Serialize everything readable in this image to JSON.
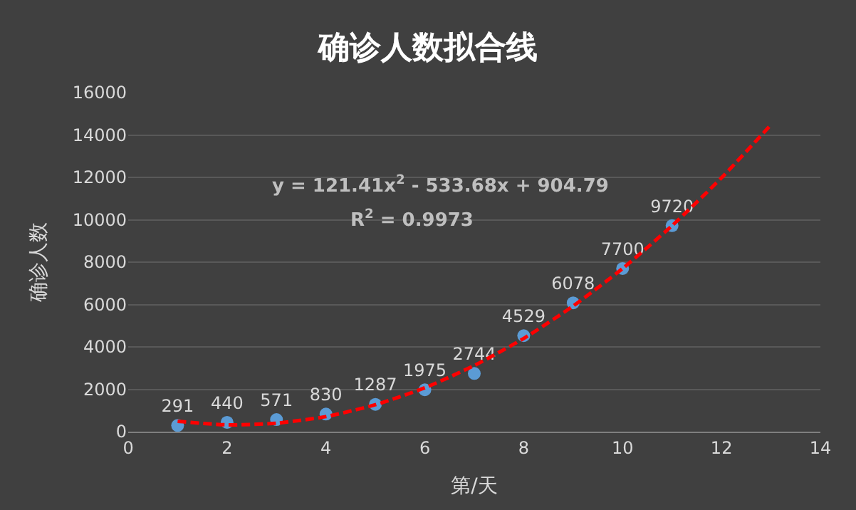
{
  "chart_data": {
    "type": "scatter",
    "title": "确诊人数拟合线",
    "xlabel": "第/天",
    "ylabel": "确诊人数",
    "xlim": [
      0,
      14
    ],
    "xticks": [
      0,
      2,
      4,
      6,
      8,
      10,
      12,
      14
    ],
    "ylim": [
      0,
      16000
    ],
    "yticks": [
      0,
      2000,
      4000,
      6000,
      8000,
      10000,
      12000,
      14000,
      16000
    ],
    "grid": "y",
    "legend": false,
    "series": [
      {
        "color": "#5b9bd5",
        "marker": "circle",
        "data_labels": true,
        "x": [
          1,
          2,
          3,
          4,
          5,
          6,
          7,
          8,
          9,
          10,
          11
        ],
        "values": [
          291,
          440,
          571,
          830,
          1287,
          1975,
          2744,
          4529,
          6078,
          7700,
          9720
        ]
      },
      {
        "type": "line",
        "color": "#ff0000",
        "marker": "none",
        "line_style": "dashed",
        "x": [
          1,
          2,
          3,
          4,
          5,
          6,
          7,
          8,
          9,
          10,
          11,
          12,
          13
        ],
        "values": [
          490,
          320,
          400,
          710,
          1270,
          2070,
          3120,
          4400,
          5930,
          7700,
          9720,
          11980,
          14480
        ]
      }
    ],
    "annotations": [
      "y = 121.41x$^{2}$ - 533.68x + 904.79",
      "R$^{2}$ = 0.9973"
    ]
  }
}
